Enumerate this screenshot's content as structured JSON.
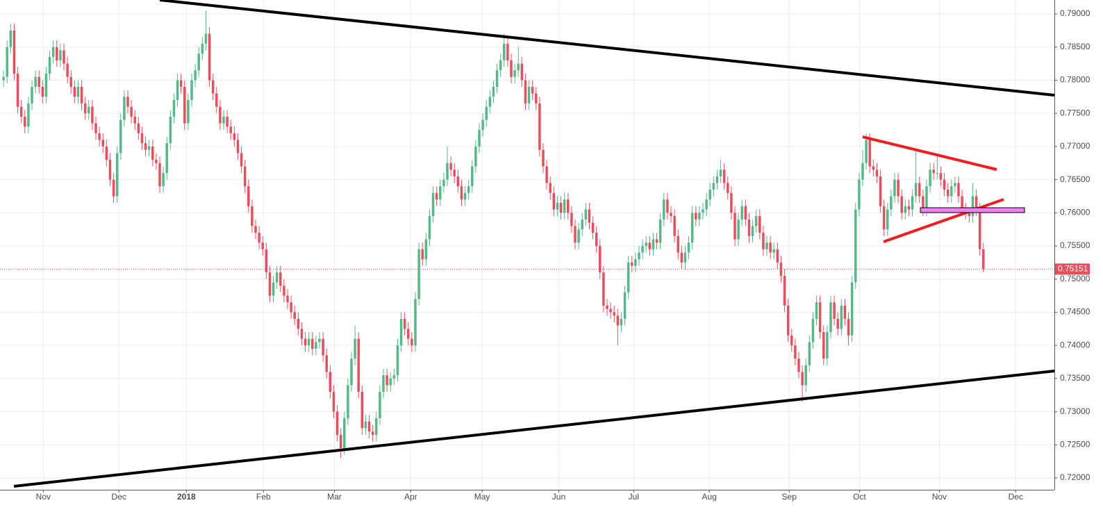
{
  "chart_data": {
    "type": "candlestick",
    "up_color": "#53b987",
    "down_color": "#eb4d5c",
    "ylim": [
      0.71822,
      0.7921
    ],
    "yticks": [
      {
        "value": 0.72,
        "label": "0.72000"
      },
      {
        "value": 0.725,
        "label": "0.72500"
      },
      {
        "value": 0.73,
        "label": "0.73000"
      },
      {
        "value": 0.735,
        "label": "0.73500"
      },
      {
        "value": 0.74,
        "label": "0.74000"
      },
      {
        "value": 0.745,
        "label": "0.74500"
      },
      {
        "value": 0.75,
        "label": "0.75000"
      },
      {
        "value": 0.755,
        "label": "0.75500"
      },
      {
        "value": 0.76,
        "label": "0.76000"
      },
      {
        "value": 0.765,
        "label": "0.76500"
      },
      {
        "value": 0.77,
        "label": "0.77000"
      },
      {
        "value": 0.775,
        "label": "0.77500"
      },
      {
        "value": 0.78,
        "label": "0.78000"
      },
      {
        "value": 0.785,
        "label": "0.78500"
      },
      {
        "value": 0.79,
        "label": "0.79000"
      }
    ],
    "xlim": [
      -1,
      296
    ],
    "xticks": [
      {
        "value": 11.2,
        "label": "Nov"
      },
      {
        "value": 32.5,
        "label": "Dec"
      },
      {
        "value": 51.5,
        "label": "2018"
      },
      {
        "value": 73.2,
        "label": "Feb"
      },
      {
        "value": 93.2,
        "label": "Mar"
      },
      {
        "value": 114.7,
        "label": "Apr"
      },
      {
        "value": 134.8,
        "label": "May"
      },
      {
        "value": 156.4,
        "label": "Jun"
      },
      {
        "value": 177.5,
        "label": "Jul"
      },
      {
        "value": 198.8,
        "label": "Aug"
      },
      {
        "value": 221.3,
        "label": "Sep"
      },
      {
        "value": 241.1,
        "label": "Oct"
      },
      {
        "value": 263.6,
        "label": "Nov"
      },
      {
        "value": 285.1,
        "label": "Dec"
      }
    ],
    "grid": true,
    "close": [
      0.7805,
      0.785,
      0.7875,
      0.781,
      0.776,
      0.7745,
      0.773,
      0.7765,
      0.779,
      0.7805,
      0.779,
      0.7775,
      0.781,
      0.7835,
      0.785,
      0.783,
      0.7845,
      0.7825,
      0.7805,
      0.779,
      0.7775,
      0.779,
      0.7765,
      0.775,
      0.776,
      0.7735,
      0.772,
      0.771,
      0.77,
      0.768,
      0.765,
      0.7625,
      0.769,
      0.774,
      0.7775,
      0.776,
      0.7745,
      0.7735,
      0.772,
      0.7705,
      0.7695,
      0.77,
      0.768,
      0.7675,
      0.764,
      0.766,
      0.7705,
      0.7745,
      0.777,
      0.78,
      0.779,
      0.7735,
      0.777,
      0.78,
      0.7815,
      0.784,
      0.7855,
      0.787,
      0.78,
      0.778,
      0.776,
      0.7735,
      0.7745,
      0.773,
      0.772,
      0.771,
      0.769,
      0.767,
      0.764,
      0.761,
      0.758,
      0.757,
      0.7555,
      0.7545,
      0.751,
      0.7475,
      0.7495,
      0.751,
      0.749,
      0.7475,
      0.7465,
      0.745,
      0.744,
      0.7425,
      0.741,
      0.74,
      0.741,
      0.7395,
      0.7405,
      0.741,
      0.7385,
      0.736,
      0.733,
      0.73,
      0.7265,
      0.7245,
      0.729,
      0.734,
      0.738,
      0.741,
      0.733,
      0.7275,
      0.7285,
      0.727,
      0.7265,
      0.729,
      0.733,
      0.7355,
      0.734,
      0.735,
      0.7355,
      0.74,
      0.744,
      0.7425,
      0.741,
      0.74,
      0.747,
      0.7545,
      0.753,
      0.756,
      0.7595,
      0.763,
      0.762,
      0.764,
      0.765,
      0.7675,
      0.7665,
      0.7655,
      0.764,
      0.762,
      0.763,
      0.764,
      0.767,
      0.77,
      0.7725,
      0.774,
      0.776,
      0.7775,
      0.779,
      0.7815,
      0.783,
      0.7855,
      0.783,
      0.7805,
      0.7815,
      0.7825,
      0.78,
      0.7765,
      0.779,
      0.778,
      0.7765,
      0.7695,
      0.767,
      0.7645,
      0.763,
      0.7605,
      0.7615,
      0.76,
      0.762,
      0.76,
      0.758,
      0.7555,
      0.7575,
      0.759,
      0.7605,
      0.7585,
      0.757,
      0.755,
      0.751,
      0.746,
      0.7455,
      0.745,
      0.7445,
      0.743,
      0.744,
      0.748,
      0.7525,
      0.752,
      0.753,
      0.754,
      0.755,
      0.7555,
      0.7545,
      0.756,
      0.7555,
      0.759,
      0.762,
      0.76,
      0.7595,
      0.7565,
      0.754,
      0.7525,
      0.754,
      0.7555,
      0.76,
      0.759,
      0.76,
      0.7605,
      0.762,
      0.7635,
      0.7645,
      0.7655,
      0.7665,
      0.7645,
      0.763,
      0.76,
      0.756,
      0.759,
      0.761,
      0.759,
      0.7565,
      0.758,
      0.7595,
      0.757,
      0.7545,
      0.7555,
      0.754,
      0.7545,
      0.7525,
      0.7505,
      0.746,
      0.7415,
      0.74,
      0.738,
      0.736,
      0.734,
      0.737,
      0.7405,
      0.744,
      0.7465,
      0.742,
      0.738,
      0.742,
      0.7465,
      0.744,
      0.7425,
      0.746,
      0.744,
      0.7415,
      0.7495,
      0.7605,
      0.765,
      0.7675,
      0.771,
      0.767,
      0.7665,
      0.7655,
      0.761,
      0.7575,
      0.7605,
      0.7625,
      0.765,
      0.7625,
      0.76,
      0.761,
      0.7605,
      0.7625,
      0.7645,
      0.7625,
      0.7605,
      0.764,
      0.7665,
      0.766,
      0.766,
      0.765,
      0.7635,
      0.7625,
      0.764,
      0.7645,
      0.7625,
      0.7605,
      0.76,
      0.7595,
      0.7625,
      0.7605,
      0.7545,
      0.75151
    ],
    "open": [
      0.78,
      0.7805,
      0.785,
      0.7875,
      0.781,
      0.776,
      0.7745,
      0.773,
      0.7765,
      0.779,
      0.7805,
      0.779,
      0.7775,
      0.781,
      0.7835,
      0.785,
      0.783,
      0.7845,
      0.7825,
      0.7805,
      0.779,
      0.7775,
      0.779,
      0.7765,
      0.775,
      0.776,
      0.7735,
      0.772,
      0.771,
      0.77,
      0.768,
      0.765,
      0.7625,
      0.769,
      0.774,
      0.7775,
      0.776,
      0.7745,
      0.7735,
      0.772,
      0.7705,
      0.7695,
      0.77,
      0.768,
      0.7675,
      0.764,
      0.766,
      0.7705,
      0.7745,
      0.777,
      0.78,
      0.779,
      0.7735,
      0.777,
      0.78,
      0.7815,
      0.784,
      0.7855,
      0.787,
      0.78,
      0.778,
      0.776,
      0.7735,
      0.7745,
      0.773,
      0.772,
      0.771,
      0.769,
      0.767,
      0.764,
      0.761,
      0.758,
      0.757,
      0.7555,
      0.7545,
      0.751,
      0.7475,
      0.7495,
      0.751,
      0.749,
      0.7475,
      0.7465,
      0.745,
      0.744,
      0.7425,
      0.741,
      0.74,
      0.741,
      0.7395,
      0.7405,
      0.741,
      0.7385,
      0.736,
      0.733,
      0.73,
      0.7265,
      0.7245,
      0.729,
      0.734,
      0.738,
      0.741,
      0.733,
      0.7275,
      0.7285,
      0.727,
      0.7265,
      0.729,
      0.733,
      0.7355,
      0.734,
      0.735,
      0.7355,
      0.74,
      0.744,
      0.7425,
      0.741,
      0.74,
      0.747,
      0.7545,
      0.753,
      0.756,
      0.7595,
      0.763,
      0.762,
      0.764,
      0.765,
      0.7675,
      0.7665,
      0.7655,
      0.764,
      0.762,
      0.763,
      0.764,
      0.767,
      0.77,
      0.7725,
      0.774,
      0.776,
      0.7775,
      0.779,
      0.7815,
      0.783,
      0.7855,
      0.783,
      0.7805,
      0.7815,
      0.7825,
      0.78,
      0.7765,
      0.779,
      0.778,
      0.7765,
      0.7695,
      0.767,
      0.7645,
      0.763,
      0.7605,
      0.7615,
      0.76,
      0.762,
      0.76,
      0.758,
      0.7555,
      0.7575,
      0.759,
      0.7605,
      0.7585,
      0.757,
      0.755,
      0.751,
      0.746,
      0.7455,
      0.745,
      0.7445,
      0.743,
      0.744,
      0.748,
      0.7525,
      0.752,
      0.753,
      0.754,
      0.755,
      0.7555,
      0.7545,
      0.756,
      0.7555,
      0.759,
      0.762,
      0.76,
      0.7595,
      0.7565,
      0.754,
      0.7525,
      0.754,
      0.7555,
      0.76,
      0.759,
      0.76,
      0.7605,
      0.762,
      0.7635,
      0.7645,
      0.7655,
      0.7665,
      0.7645,
      0.763,
      0.76,
      0.756,
      0.759,
      0.761,
      0.759,
      0.7565,
      0.758,
      0.7595,
      0.757,
      0.7545,
      0.7555,
      0.754,
      0.7545,
      0.7525,
      0.7505,
      0.746,
      0.7415,
      0.74,
      0.738,
      0.736,
      0.734,
      0.737,
      0.7405,
      0.744,
      0.7465,
      0.742,
      0.738,
      0.742,
      0.7465,
      0.744,
      0.7425,
      0.746,
      0.744,
      0.7415,
      0.7495,
      0.7605,
      0.765,
      0.7675,
      0.771,
      0.767,
      0.7665,
      0.7655,
      0.761,
      0.7575,
      0.7605,
      0.7625,
      0.765,
      0.7625,
      0.76,
      0.761,
      0.7605,
      0.7625,
      0.7645,
      0.7625,
      0.7605,
      0.764,
      0.7665,
      0.766,
      0.766,
      0.765,
      0.7635,
      0.7625,
      0.764,
      0.7645,
      0.7625,
      0.7605,
      0.76,
      0.7595,
      0.7625,
      0.7605,
      0.7545
    ],
    "high": [
      0.7815,
      0.786,
      0.7885,
      0.7885,
      0.782,
      0.777,
      0.7755,
      0.7775,
      0.78,
      0.7815,
      0.7815,
      0.78,
      0.782,
      0.7845,
      0.786,
      0.786,
      0.7855,
      0.7855,
      0.7835,
      0.7815,
      0.78,
      0.78,
      0.78,
      0.7775,
      0.777,
      0.777,
      0.7745,
      0.773,
      0.772,
      0.771,
      0.769,
      0.766,
      0.77,
      0.775,
      0.7785,
      0.7785,
      0.777,
      0.7755,
      0.7745,
      0.773,
      0.7715,
      0.771,
      0.771,
      0.769,
      0.7685,
      0.767,
      0.7715,
      0.7755,
      0.778,
      0.781,
      0.781,
      0.78,
      0.778,
      0.781,
      0.7825,
      0.785,
      0.7865,
      0.7905,
      0.788,
      0.781,
      0.779,
      0.777,
      0.7755,
      0.7755,
      0.774,
      0.773,
      0.772,
      0.77,
      0.768,
      0.765,
      0.762,
      0.759,
      0.758,
      0.7565,
      0.7555,
      0.752,
      0.7505,
      0.752,
      0.752,
      0.75,
      0.7485,
      0.7475,
      0.746,
      0.745,
      0.7435,
      0.742,
      0.742,
      0.742,
      0.7415,
      0.742,
      0.742,
      0.7395,
      0.737,
      0.734,
      0.731,
      0.7275,
      0.73,
      0.735,
      0.739,
      0.743,
      0.742,
      0.734,
      0.7295,
      0.7295,
      0.728,
      0.73,
      0.734,
      0.7365,
      0.7365,
      0.736,
      0.7365,
      0.741,
      0.745,
      0.745,
      0.7435,
      0.742,
      0.748,
      0.7555,
      0.7555,
      0.757,
      0.7605,
      0.764,
      0.764,
      0.765,
      0.766,
      0.77,
      0.7685,
      0.7675,
      0.7665,
      0.765,
      0.764,
      0.765,
      0.768,
      0.771,
      0.7735,
      0.775,
      0.777,
      0.7785,
      0.78,
      0.7825,
      0.784,
      0.787,
      0.7865,
      0.784,
      0.7825,
      0.785,
      0.7835,
      0.781,
      0.78,
      0.78,
      0.779,
      0.7775,
      0.7705,
      0.768,
      0.7655,
      0.764,
      0.7625,
      0.7625,
      0.763,
      0.763,
      0.761,
      0.759,
      0.7585,
      0.76,
      0.7615,
      0.7615,
      0.7595,
      0.758,
      0.756,
      0.752,
      0.747,
      0.7465,
      0.746,
      0.7455,
      0.745,
      0.749,
      0.7535,
      0.7535,
      0.754,
      0.755,
      0.756,
      0.7565,
      0.7565,
      0.757,
      0.757,
      0.76,
      0.763,
      0.763,
      0.761,
      0.7605,
      0.7575,
      0.755,
      0.755,
      0.7565,
      0.761,
      0.761,
      0.761,
      0.7615,
      0.763,
      0.7645,
      0.7655,
      0.7665,
      0.768,
      0.7675,
      0.7655,
      0.764,
      0.761,
      0.76,
      0.762,
      0.762,
      0.76,
      0.759,
      0.7605,
      0.7605,
      0.758,
      0.7565,
      0.7565,
      0.7555,
      0.7555,
      0.7535,
      0.7515,
      0.747,
      0.7425,
      0.741,
      0.739,
      0.737,
      0.738,
      0.7415,
      0.745,
      0.7475,
      0.7475,
      0.743,
      0.743,
      0.7475,
      0.7475,
      0.745,
      0.747,
      0.747,
      0.745,
      0.7505,
      0.7615,
      0.766,
      0.7695,
      0.772,
      0.772,
      0.768,
      0.7675,
      0.7665,
      0.762,
      0.7615,
      0.7635,
      0.766,
      0.766,
      0.7635,
      0.762,
      0.762,
      0.7635,
      0.7695,
      0.7655,
      0.7635,
      0.765,
      0.7675,
      0.7675,
      0.7685,
      0.767,
      0.766,
      0.7645,
      0.765,
      0.7655,
      0.7655,
      0.7635,
      0.7615,
      0.7605,
      0.7645,
      0.7635,
      0.7615,
      0.7555
    ],
    "low": [
      0.779,
      0.7795,
      0.784,
      0.78,
      0.775,
      0.7735,
      0.772,
      0.772,
      0.7755,
      0.778,
      0.778,
      0.7765,
      0.7765,
      0.78,
      0.7825,
      0.782,
      0.782,
      0.7815,
      0.7795,
      0.778,
      0.7765,
      0.7765,
      0.7755,
      0.774,
      0.774,
      0.7725,
      0.771,
      0.77,
      0.769,
      0.767,
      0.764,
      0.7615,
      0.7615,
      0.768,
      0.773,
      0.775,
      0.7735,
      0.7725,
      0.771,
      0.7695,
      0.7685,
      0.7685,
      0.767,
      0.7665,
      0.763,
      0.763,
      0.765,
      0.7695,
      0.7735,
      0.776,
      0.778,
      0.7725,
      0.7725,
      0.776,
      0.779,
      0.7805,
      0.783,
      0.7845,
      0.779,
      0.777,
      0.775,
      0.7725,
      0.7725,
      0.772,
      0.771,
      0.77,
      0.768,
      0.766,
      0.763,
      0.76,
      0.757,
      0.756,
      0.7545,
      0.7535,
      0.75,
      0.7465,
      0.7465,
      0.7485,
      0.748,
      0.7465,
      0.7455,
      0.744,
      0.743,
      0.7415,
      0.74,
      0.739,
      0.739,
      0.7385,
      0.7385,
      0.7395,
      0.7375,
      0.735,
      0.732,
      0.729,
      0.7255,
      0.723,
      0.7235,
      0.728,
      0.733,
      0.737,
      0.732,
      0.7265,
      0.7265,
      0.726,
      0.7255,
      0.7255,
      0.728,
      0.732,
      0.733,
      0.733,
      0.734,
      0.7345,
      0.739,
      0.7415,
      0.74,
      0.739,
      0.739,
      0.746,
      0.752,
      0.752,
      0.755,
      0.7585,
      0.761,
      0.761,
      0.763,
      0.764,
      0.7655,
      0.7645,
      0.763,
      0.761,
      0.761,
      0.762,
      0.763,
      0.766,
      0.769,
      0.7715,
      0.773,
      0.775,
      0.7765,
      0.778,
      0.7805,
      0.782,
      0.782,
      0.7795,
      0.7795,
      0.7805,
      0.779,
      0.7755,
      0.7755,
      0.777,
      0.7755,
      0.7685,
      0.766,
      0.7635,
      0.762,
      0.7595,
      0.7595,
      0.759,
      0.759,
      0.759,
      0.757,
      0.7545,
      0.7545,
      0.7565,
      0.758,
      0.7575,
      0.756,
      0.754,
      0.75,
      0.745,
      0.7445,
      0.744,
      0.7435,
      0.74,
      0.742,
      0.743,
      0.747,
      0.751,
      0.751,
      0.752,
      0.753,
      0.754,
      0.7535,
      0.7535,
      0.7545,
      0.7545,
      0.758,
      0.759,
      0.7585,
      0.7555,
      0.753,
      0.7515,
      0.7515,
      0.753,
      0.7545,
      0.758,
      0.758,
      0.759,
      0.7595,
      0.761,
      0.7625,
      0.7635,
      0.7645,
      0.7635,
      0.762,
      0.759,
      0.755,
      0.755,
      0.758,
      0.758,
      0.7555,
      0.7555,
      0.757,
      0.756,
      0.7535,
      0.7535,
      0.753,
      0.753,
      0.7515,
      0.7495,
      0.745,
      0.7405,
      0.739,
      0.737,
      0.735,
      0.7315,
      0.733,
      0.736,
      0.7395,
      0.743,
      0.741,
      0.737,
      0.737,
      0.741,
      0.743,
      0.7415,
      0.7415,
      0.743,
      0.74,
      0.7405,
      0.7485,
      0.7595,
      0.764,
      0.7665,
      0.766,
      0.7655,
      0.7645,
      0.76,
      0.7565,
      0.7565,
      0.7595,
      0.7615,
      0.7615,
      0.759,
      0.759,
      0.7595,
      0.7595,
      0.7615,
      0.7615,
      0.7595,
      0.7595,
      0.763,
      0.765,
      0.765,
      0.764,
      0.7625,
      0.7615,
      0.7615,
      0.763,
      0.7615,
      0.7595,
      0.759,
      0.7585,
      0.7585,
      0.7595,
      0.7535,
      0.751
    ]
  }
}
